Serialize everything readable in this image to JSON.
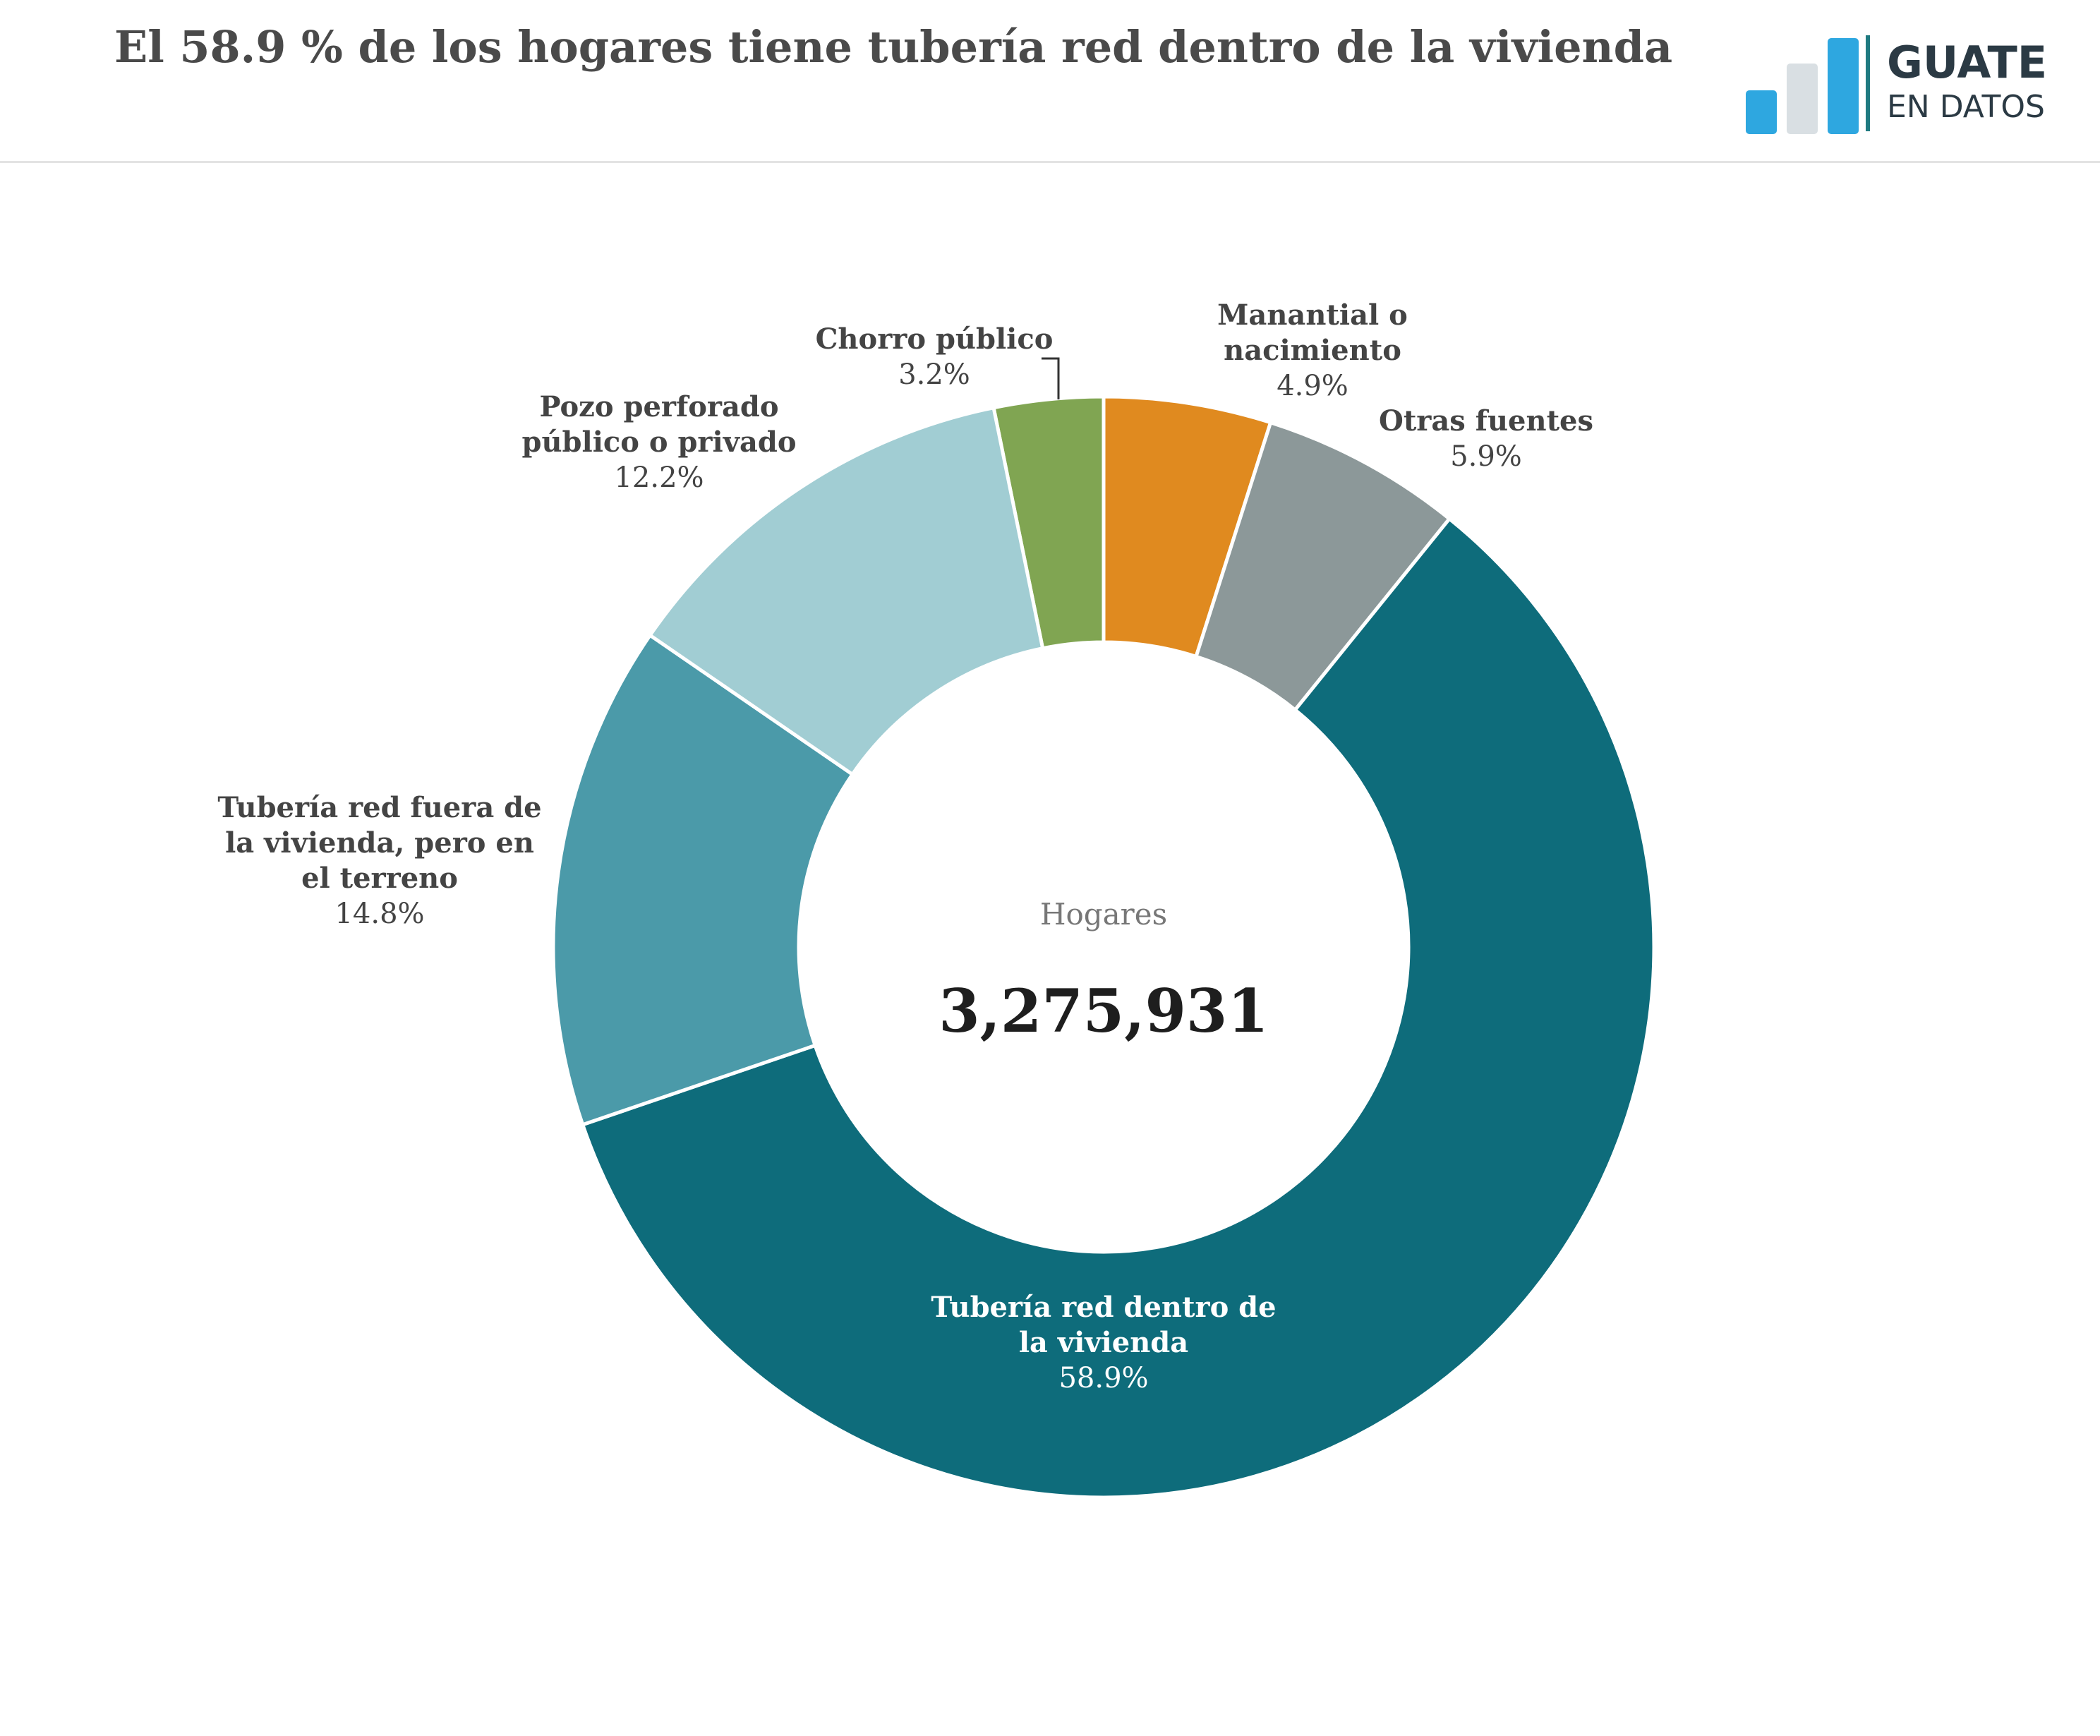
{
  "header": {
    "title": "El 58.9 % de los hogares tiene tubería red dentro de la vivienda"
  },
  "logo": {
    "line1": "GUATE",
    "line2": "EN DATOS",
    "bar_colors": [
      "#2ea7e0",
      "#d9dfe3",
      "#2ea7e0"
    ]
  },
  "center": {
    "label": "Hogares",
    "value": "3,275,931"
  },
  "chart_data": {
    "type": "pie",
    "style": "donut",
    "total_label": "Hogares",
    "total": 3275931,
    "slices": [
      {
        "label": "Tubería red dentro de la vivienda",
        "value": 58.9,
        "display": "58.9%",
        "color": "#0e6c7b"
      },
      {
        "label": "Tubería red fuera de la vivienda, pero en el terreno",
        "value": 14.8,
        "display": "14.8%",
        "color": "#4b9aa9"
      },
      {
        "label": "Pozo perforado público o privado",
        "value": 12.2,
        "display": "12.2%",
        "color": "#a1cdd3"
      },
      {
        "label": "Chorro público",
        "value": 3.2,
        "display": "3.2%",
        "color": "#80a552"
      },
      {
        "label": "Manantial o nacimiento",
        "value": 4.9,
        "display": "4.9%",
        "color": "#e08a1f"
      },
      {
        "label": "Otras fuentes",
        "value": 5.9,
        "display": "5.9%",
        "color": "#8c9899"
      }
    ]
  }
}
